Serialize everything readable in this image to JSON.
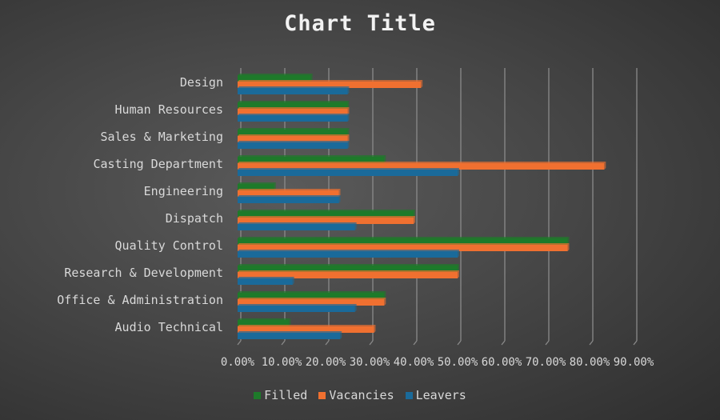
{
  "chart_data": {
    "type": "bar",
    "orientation": "horizontal",
    "title": "Chart Title",
    "categories": [
      "Design",
      "Human Resources",
      "Sales & Marketing",
      "Casting Department",
      "Engineering",
      "Dispatch",
      "Quality Control",
      "Research & Development",
      "Office & Administration",
      "Audio Technical"
    ],
    "series": [
      {
        "name": "Filled",
        "color": "#1e7a2a",
        "values": [
          16.67,
          25,
          25,
          33.33,
          8.33,
          40,
          75,
          50,
          33.33,
          11.7
        ]
      },
      {
        "name": "Vacancies",
        "color": "#f07030",
        "values": [
          41.67,
          25,
          25,
          83.33,
          23,
          40,
          75,
          50,
          33.33,
          31
        ]
      },
      {
        "name": "Leavers",
        "color": "#1a6a9a",
        "values": [
          25,
          25,
          25,
          50,
          23,
          26.67,
          50,
          12.5,
          26.67,
          23.3
        ]
      }
    ],
    "xlim": [
      0,
      90
    ],
    "xticks": [
      "0.00%",
      "10.00%",
      "20.00%",
      "30.00%",
      "40.00%",
      "50.00%",
      "60.00%",
      "70.00%",
      "80.00%",
      "90.00%"
    ],
    "grid": true,
    "legend": "bottom"
  }
}
